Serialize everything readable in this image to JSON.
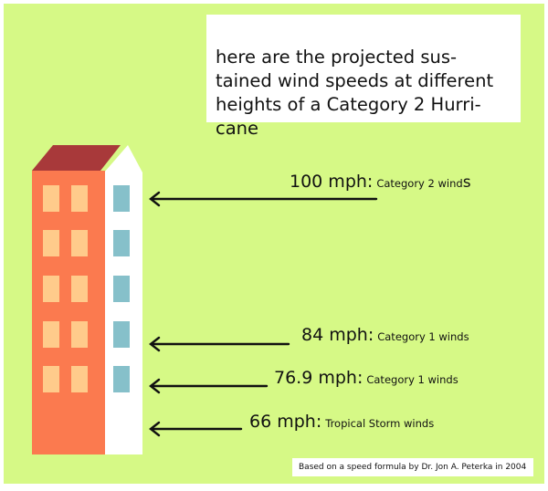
{
  "title": " here are the projected sus-\ntained wind speeds at different\nheights of a Category 2 Hurri-\ncane",
  "levels": [
    {
      "speed": "100 mph:",
      "category": "Category 2 wind",
      "category_tail": "s"
    },
    {
      "speed": "84 mph:",
      "category": "Category 1 winds",
      "category_tail": ""
    },
    {
      "speed": "76.9 mph:",
      "category": "Category 1 winds",
      "category_tail": ""
    },
    {
      "speed": "66 mph:",
      "category": "Tropical Storm winds",
      "category_tail": ""
    }
  ],
  "source": "Based on a speed formula by Dr. Jon A. Peterka in 2004",
  "colors": {
    "background": "#d6f986",
    "building_front": "#fb7a4f",
    "building_side": "#ffffff",
    "roof": "#a8393a",
    "window_front": "#ffcb8b",
    "window_side": "#86c0ca",
    "arrow": "#111111"
  }
}
